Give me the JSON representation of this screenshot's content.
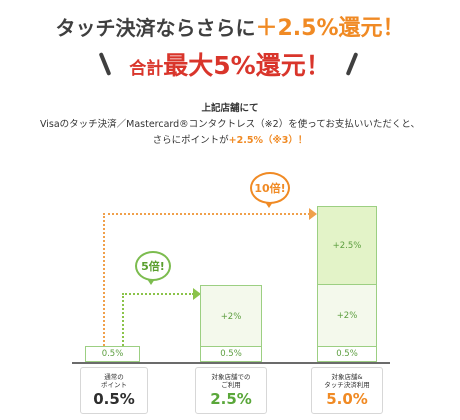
{
  "headline": {
    "line1_prefix": "タッチ決済ならさらに",
    "line1_accent": "＋2.5%還元！",
    "line2_small": "合計",
    "line2_big": "最大5%還元！"
  },
  "description": {
    "line1": "上記店舗にて",
    "line2": "Visaのタッチ決済／Mastercard®コンタクトレス（※2）を使ってお支払いいただくと、",
    "line3_prefix": "さらにポイントが",
    "line3_accent": "+2.5%（※3）！"
  },
  "callouts": {
    "five_times": "5倍!",
    "ten_times": "10倍!"
  },
  "bars": {
    "col1_base": "0.5%",
    "col2_top": "+2%",
    "col2_base": "0.5%",
    "col3_top": "+2.5%",
    "col3_mid": "+2%",
    "col3_base": "0.5%"
  },
  "labels": [
    {
      "caption_1": "通常の",
      "caption_2": "ポイント",
      "value": "0.5%"
    },
    {
      "caption_1": "対象店舗での",
      "caption_2": "ご利用",
      "value": "2.5%"
    },
    {
      "caption_1": "対象店舗&",
      "caption_2": "タッチ決済利用",
      "value": "5.0%"
    }
  ],
  "colors": {
    "accent_orange": "#f08a24",
    "accent_red": "#d9352b",
    "bar_green": "#9ccf82"
  }
}
